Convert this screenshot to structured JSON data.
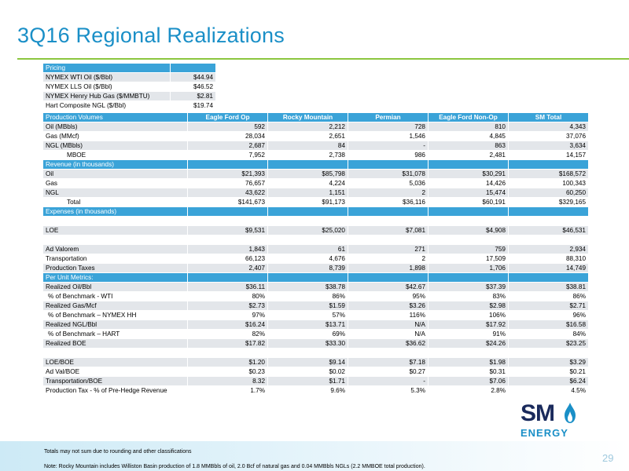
{
  "title": "3Q16 Regional Realizations",
  "pricing": {
    "header": "Pricing",
    "rows": [
      {
        "label": "NYMEX WTI Oil ($/Bbl)",
        "value": "$44.94"
      },
      {
        "label": "NYMEX LLS Oil ($/Bbl)",
        "value": "$46.52"
      },
      {
        "label": "NYMEX Henry Hub Gas ($/MMBTU)",
        "value": "$2.81"
      },
      {
        "label": "Hart Composite NGL ($/Bbl)",
        "value": "$19.74"
      }
    ]
  },
  "production": {
    "header": "Production Volumes",
    "columns": [
      "Eagle Ford Op",
      "Rocky Mountain",
      "Permian",
      "Eagle Ford Non-Op",
      "SM Total"
    ],
    "rows": [
      {
        "label": "Oil (MBbls)",
        "values": [
          "592",
          "2,212",
          "728",
          "810",
          "4,343"
        ]
      },
      {
        "label": "Gas (MMcf)",
        "values": [
          "28,034",
          "2,651",
          "1,546",
          "4,845",
          "37,076"
        ]
      },
      {
        "label": "NGL (MBbls)",
        "values": [
          "2,687",
          "84",
          "-",
          "863",
          "3,634"
        ]
      },
      {
        "label": "MBOE",
        "values": [
          "7,952",
          "2,738",
          "986",
          "2,481",
          "14,157"
        ]
      }
    ]
  },
  "revenue": {
    "header": "Revenue (in thousands)",
    "rows": [
      {
        "label": "Oil",
        "values": [
          "$21,393",
          "$85,798",
          "$31,078",
          "$30,291",
          "$168,572"
        ]
      },
      {
        "label": "Gas",
        "values": [
          "76,657",
          "4,224",
          "5,036",
          "14,426",
          "100,343"
        ]
      },
      {
        "label": "NGL",
        "values": [
          "43,622",
          "1,151",
          "2",
          "15,474",
          "60,250"
        ]
      },
      {
        "label": "Total",
        "values": [
          "$141,673",
          "$91,173",
          "$36,116",
          "$60,191",
          "$329,165"
        ]
      }
    ]
  },
  "expenses": {
    "header": "Expenses (in thousands)",
    "rows": [
      {
        "label": "LOE",
        "values": [
          "$9,531",
          "$25,020",
          "$7,081",
          "$4,908",
          "$46,531"
        ]
      },
      {
        "label": "Ad Valorem",
        "values": [
          "1,843",
          "61",
          "271",
          "759",
          "2,934"
        ]
      },
      {
        "label": "Transportation",
        "values": [
          "66,123",
          "4,676",
          "2",
          "17,509",
          "88,310"
        ]
      },
      {
        "label": "Production Taxes",
        "values": [
          "2,407",
          "8,739",
          "1,898",
          "1,706",
          "14,749"
        ]
      }
    ]
  },
  "per_unit": {
    "header": "Per Unit Metrics:",
    "rows": [
      {
        "label": "Realized Oil/Bbl",
        "values": [
          "$36.11",
          "$38.78",
          "$42.67",
          "$37.39",
          "$38.81"
        ]
      },
      {
        "label": "% of Benchmark - WTI",
        "values": [
          "80%",
          "86%",
          "95%",
          "83%",
          "86%"
        ]
      },
      {
        "label": "Realized Gas/Mcf",
        "values": [
          "$2.73",
          "$1.59",
          "$3.26",
          "$2.98",
          "$2.71"
        ]
      },
      {
        "label": "% of Benchmark – NYMEX HH",
        "values": [
          "97%",
          "57%",
          "116%",
          "106%",
          "96%"
        ]
      },
      {
        "label": "Realized NGL/Bbl",
        "values": [
          "$16.24",
          "$13.71",
          "N/A",
          "$17.92",
          "$16.58"
        ]
      },
      {
        "label": "% of Benchmark – HART",
        "values": [
          "82%",
          "69%",
          "N/A",
          "91%",
          "84%"
        ]
      },
      {
        "label": "Realized BOE",
        "values": [
          "$17.82",
          "$33.30",
          "$36.62",
          "$24.26",
          "$23.25"
        ]
      },
      {
        "label": "LOE/BOE",
        "values": [
          "$1.20",
          "$9.14",
          "$7.18",
          "$1.98",
          "$3.29"
        ]
      },
      {
        "label": "Ad Val/BOE",
        "values": [
          "$0.23",
          "$0.02",
          "$0.27",
          "$0.31",
          "$0.21"
        ]
      },
      {
        "label": "Transportation/BOE",
        "values": [
          "8.32",
          "$1.71",
          "-",
          "$7.06",
          "$6.24"
        ]
      },
      {
        "label": "Production Tax - % of Pre-Hedge Revenue",
        "values": [
          "1.7%",
          "9.6%",
          "5.3%",
          "2.8%",
          "4.5%"
        ]
      }
    ]
  },
  "logo": {
    "text": "SM",
    "subtext": "ENERGY",
    "colors": {
      "navy": "#1a2a5c",
      "blue": "#1a8fc7"
    }
  },
  "footer": {
    "note1": "Totals may not sum due to rounding and other classifications",
    "note2": "Note: Rocky Mountain includes Williston Basin production of 1.8 MMBbls of oil, 2.0 Bcf of natural gas and 0.04 MMBbls NGLs (2.2 MMBOE total production).",
    "page": "29"
  },
  "colors": {
    "title": "#1a8fc7",
    "header_band": "#3aa3d8",
    "rule": "#8cc63f",
    "row_gray": "#e3e6ea"
  }
}
